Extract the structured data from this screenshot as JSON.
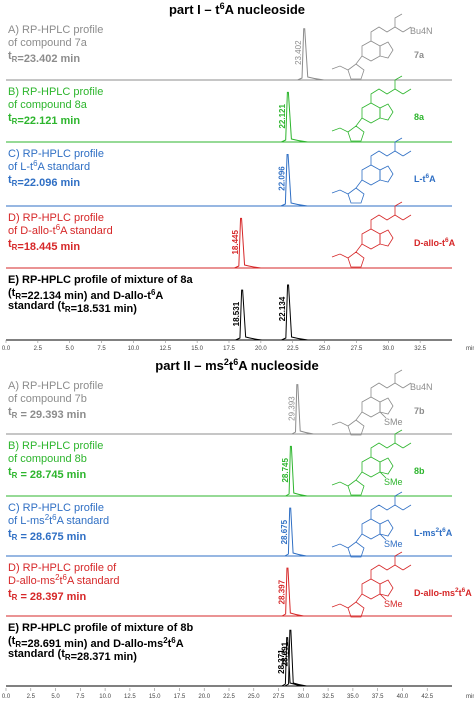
{
  "colors": {
    "gray": "#8c8c8c",
    "green": "#2db52d",
    "blue": "#2f6fc4",
    "red": "#d62728",
    "black": "#000000"
  },
  "parts": [
    {
      "title_pre": "part I – t",
      "title_sup": "6",
      "title_post": "A nucleoside",
      "axis": {
        "min": 0,
        "max": 35,
        "ticks": [
          "0.0",
          "2.5",
          "5.0",
          "7.5",
          "10.0",
          "12.5",
          "15.0",
          "17.5",
          "20.0",
          "22.5",
          "25.0",
          "27.5",
          "30.0",
          "32.5"
        ],
        "unit": "min"
      },
      "panels": [
        {
          "line1": "A) RP-HPLC profile",
          "line2": "of compound 7a",
          "line3": "t_R=23.402 min",
          "color": "gray",
          "peaks": [
            {
              "rt": 23.402,
              "label": "23.402",
              "h": 0.95
            }
          ],
          "struct_label": "7a",
          "bu4n": "Bu4N"
        },
        {
          "line1": "B) RP-HPLC profile",
          "line2": "of compound 8a",
          "line3": "t_R=22.121 min",
          "color": "green",
          "peaks": [
            {
              "rt": 22.121,
              "label": "22.121",
              "h": 0.92
            }
          ],
          "struct_label": "8a"
        },
        {
          "line1": "C) RP-HPLC profile",
          "line2": "of L-t6A standard",
          "line3": "t_R=22.096 min",
          "color": "blue",
          "peaks": [
            {
              "rt": 22.096,
              "label": "22.096",
              "h": 0.92
            }
          ],
          "struct_label": "L-t6A"
        },
        {
          "line1": "D) RP-HPLC profile",
          "line2": "of D-allo-t6A  standard",
          "line3": "t_R=18.445 min",
          "color": "red",
          "peaks": [
            {
              "rt": 18.445,
              "label": "18.445",
              "h": 0.92
            }
          ],
          "struct_label": "D-allo-t6A"
        },
        {
          "line1": "E) RP-HPLC profile of mixture of 8a",
          "line2": "(t_R=22.134 min) and D-allo-t6A",
          "line3": "standard (t_R=18.531 min)",
          "color": "black",
          "peaks": [
            {
              "rt": 18.531,
              "label": "18.531",
              "h": 0.78
            },
            {
              "rt": 22.134,
              "label": "22.134",
              "h": 0.86
            }
          ]
        }
      ]
    },
    {
      "title_pre": "part II – ms",
      "title_sup": "2",
      "title_mid": "t",
      "title_sup2": "6",
      "title_post": "A nucleoside",
      "axis": {
        "min": 0,
        "max": 45,
        "ticks": [
          "0.0",
          "2.5",
          "5.0",
          "7.5",
          "10.0",
          "12.5",
          "15.0",
          "17.5",
          "20.0",
          "22.5",
          "25.0",
          "27.5",
          "30.0",
          "32.5",
          "35.0",
          "37.5",
          "40.0",
          "42.5"
        ],
        "unit": "min"
      },
      "panels": [
        {
          "line1": "A) RP-HPLC profile",
          "line2": "of compound 7b",
          "line3": "t_R = 29.393 min",
          "color": "gray",
          "peaks": [
            {
              "rt": 29.393,
              "label": "29.393",
              "h": 0.95
            }
          ],
          "struct_label": "7b",
          "bu4n": "Bu4N"
        },
        {
          "line1": "B) RP-HPLC profile",
          "line2": "of compound 8b",
          "line3": "t_R = 28.745 min",
          "color": "green",
          "peaks": [
            {
              "rt": 28.745,
              "label": "28.745",
              "h": 0.92
            }
          ],
          "struct_label": "8b"
        },
        {
          "line1": "C) RP-HPLC profile",
          "line2": "of L-ms2t6A standard",
          "line3": "t_R = 28.675 min",
          "color": "blue",
          "peaks": [
            {
              "rt": 28.675,
              "label": "28.675",
              "h": 0.92
            }
          ],
          "struct_label": "L-ms2t6A"
        },
        {
          "line1": "D) RP-HPLC profile of",
          "line2": "D-allo-ms2t6A  standard",
          "line3": "t_R = 28.397 min",
          "color": "red",
          "peaks": [
            {
              "rt": 28.397,
              "label": "28.397",
              "h": 0.92
            }
          ],
          "struct_label": "D-allo-ms2t6A"
        },
        {
          "line1": "E) RP-HPLC profile of mixture of 8b",
          "line2": "(t_R=28.691 min) and D-allo-ms2t6A",
          "line3": "standard (t_R=28.371 min)",
          "color": "black",
          "peaks": [
            {
              "rt": 28.371,
              "label": "28.371",
              "h": 0.78
            },
            {
              "rt": 28.691,
              "label": "28.691",
              "h": 0.9
            }
          ]
        }
      ]
    }
  ],
  "chart_data": [
    {
      "type": "line",
      "title": "part I – t6A nucleoside",
      "xlabel": "min",
      "xlim": [
        0,
        35
      ],
      "series": [
        {
          "name": "A) compound 7a",
          "peak_rt": [
            23.402
          ]
        },
        {
          "name": "B) compound 8a",
          "peak_rt": [
            22.121
          ]
        },
        {
          "name": "C) L-t6A standard",
          "peak_rt": [
            22.096
          ]
        },
        {
          "name": "D) D-allo-t6A standard",
          "peak_rt": [
            18.445
          ]
        },
        {
          "name": "E) mixture of 8a and D-allo-t6A",
          "peak_rt": [
            18.531,
            22.134
          ]
        }
      ]
    },
    {
      "type": "line",
      "title": "part II – ms2t6A nucleoside",
      "xlabel": "min",
      "xlim": [
        0,
        45
      ],
      "series": [
        {
          "name": "A) compound 7b",
          "peak_rt": [
            29.393
          ]
        },
        {
          "name": "B) compound 8b",
          "peak_rt": [
            28.745
          ]
        },
        {
          "name": "C) L-ms2t6A standard",
          "peak_rt": [
            28.675
          ]
        },
        {
          "name": "D) D-allo-ms2t6A standard",
          "peak_rt": [
            28.397
          ]
        },
        {
          "name": "E) mixture of 8b and D-allo-ms2t6A",
          "peak_rt": [
            28.371,
            28.691
          ]
        }
      ]
    }
  ]
}
